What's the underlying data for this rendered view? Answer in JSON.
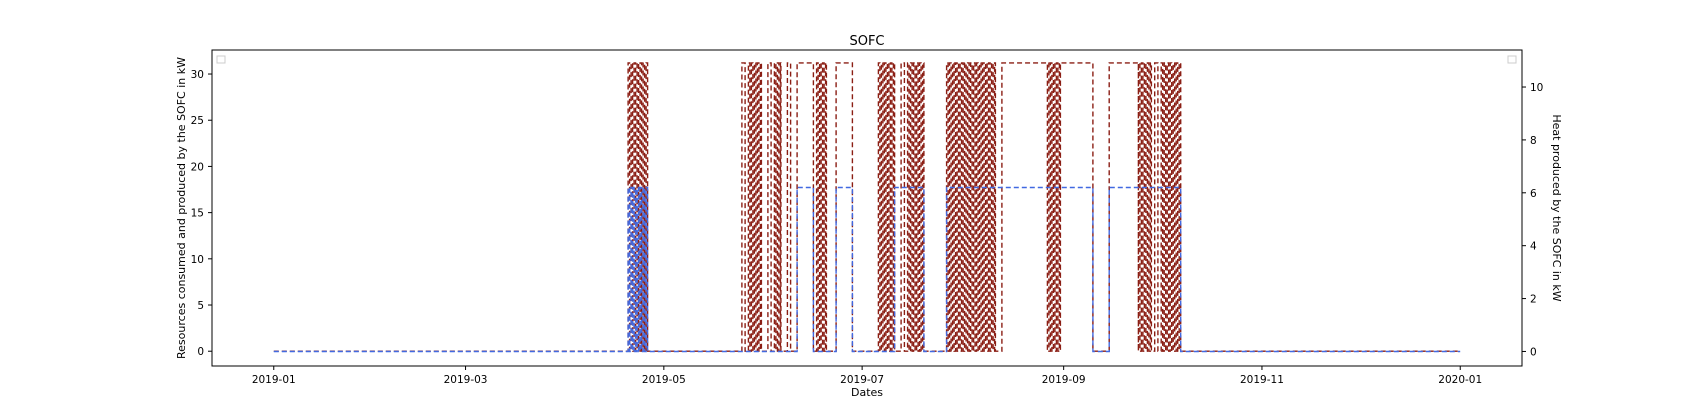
{
  "chart_data": {
    "type": "line",
    "title": "SOFC",
    "xlabel": "Dates",
    "ylabel": "Resources consumed and produced by the SOFC in kW",
    "y2label": "Heat produced by the SOFC in kW",
    "xlim": [
      "2018-12-13",
      "2020-01-20"
    ],
    "ylim": [
      -1.6,
      32.6
    ],
    "y2lim": [
      -0.55,
      11.4
    ],
    "x_ticks": [
      {
        "date": "2019-01-01",
        "label": "2019-01"
      },
      {
        "date": "2019-03-01",
        "label": "2019-03"
      },
      {
        "date": "2019-05-01",
        "label": "2019-05"
      },
      {
        "date": "2019-07-01",
        "label": "2019-07"
      },
      {
        "date": "2019-09-01",
        "label": "2019-09"
      },
      {
        "date": "2019-11-01",
        "label": "2019-11"
      },
      {
        "date": "2020-01-01",
        "label": "2020-01"
      }
    ],
    "y_ticks": [
      0,
      5,
      10,
      15,
      20,
      25,
      30
    ],
    "y2_ticks": [
      0,
      2,
      4,
      6,
      8,
      10
    ],
    "grid": false,
    "legend": [
      "upper-left",
      "upper-right"
    ],
    "series": [
      {
        "color": "#8b1e14",
        "style": "dashed",
        "axis": "left",
        "on_level": 31.2,
        "off_level": 0,
        "start": "2019-01-01",
        "end": "2020-01-01",
        "blocks": [
          [
            "2019-04-20",
            "2019-04-26",
            "dense"
          ],
          [
            "2019-05-25",
            "2019-05-26"
          ],
          [
            "2019-05-27",
            "2019-05-31",
            "dense"
          ],
          [
            "2019-06-02",
            "2019-06-03"
          ],
          [
            "2019-06-04",
            "2019-06-06",
            "dense"
          ],
          [
            "2019-06-08",
            "2019-06-09"
          ],
          [
            "2019-06-11",
            "2019-06-16"
          ],
          [
            "2019-06-17",
            "2019-06-20",
            "dense"
          ],
          [
            "2019-06-23",
            "2019-06-28"
          ],
          [
            "2019-07-06",
            "2019-07-11",
            "dense"
          ],
          [
            "2019-07-13",
            "2019-07-14"
          ],
          [
            "2019-07-15",
            "2019-07-20",
            "dense"
          ],
          [
            "2019-07-27",
            "2019-08-11",
            "dense"
          ],
          [
            "2019-08-13",
            "2019-08-27"
          ],
          [
            "2019-08-27",
            "2019-08-31",
            "dense"
          ],
          [
            "2019-08-31",
            "2019-09-10"
          ],
          [
            "2019-09-15",
            "2019-09-24"
          ],
          [
            "2019-09-24",
            "2019-09-28",
            "dense"
          ],
          [
            "2019-09-29",
            "2019-09-30"
          ],
          [
            "2019-10-01",
            "2019-10-07",
            "dense"
          ]
        ]
      },
      {
        "color": "#4169e1",
        "style": "dashed",
        "axis": "right",
        "on_level": 6.2,
        "off_level": 0,
        "start": "2019-01-01",
        "end": "2020-01-01",
        "blocks": [
          [
            "2019-04-20",
            "2019-04-26",
            "dense"
          ],
          [
            "2019-06-11",
            "2019-06-16"
          ],
          [
            "2019-06-23",
            "2019-06-28"
          ],
          [
            "2019-07-11",
            "2019-07-20"
          ],
          [
            "2019-07-27",
            "2019-09-10"
          ],
          [
            "2019-09-15",
            "2019-10-07"
          ]
        ]
      }
    ]
  }
}
